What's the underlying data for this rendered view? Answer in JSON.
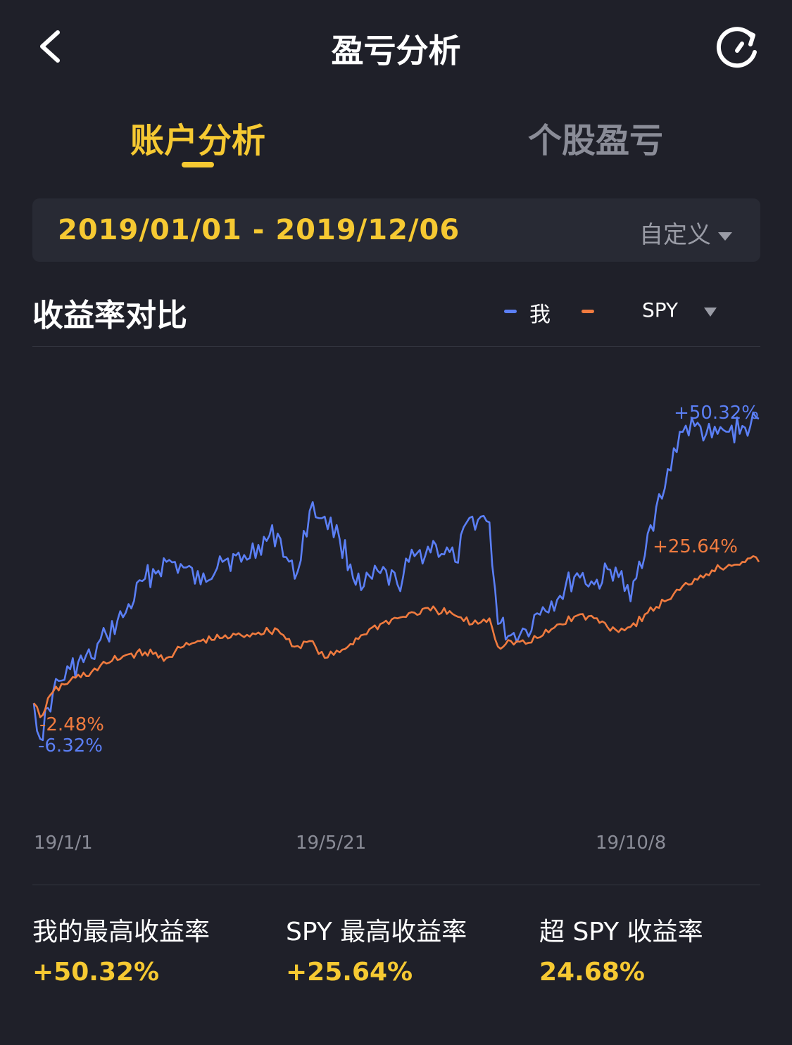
{
  "header": {
    "title": "盈亏分析",
    "back_icon": "chevron-left-icon",
    "refresh_icon": "refresh-icon"
  },
  "tabs": [
    {
      "label": "账户分析",
      "active": true
    },
    {
      "label": "个股盈亏",
      "active": false
    }
  ],
  "date_range": {
    "text": "2019/01/01 - 2019/12/06",
    "mode_label": "自定义"
  },
  "section": {
    "title": "收益率对比",
    "legend": {
      "me_label": "我",
      "benchmark_label": "SPY"
    }
  },
  "colors": {
    "me": "#5b7ff5",
    "spy": "#f07b3f",
    "accent": "#f6c932",
    "background": "#1f2029"
  },
  "chart_data": {
    "type": "line",
    "x_tick_labels": [
      "19/1/1",
      "19/5/21",
      "19/10/8"
    ],
    "x_range": [
      "2019-01-01",
      "2019-12-06"
    ],
    "y_unit": "%",
    "grid": false,
    "legend_position": "top-right",
    "series": [
      {
        "name": "我",
        "color": "#5b7ff5",
        "x": [
          "2019-01-01",
          "2019-01-04",
          "2019-01-10",
          "2019-01-18",
          "2019-01-28",
          "2019-02-04",
          "2019-02-13",
          "2019-02-22",
          "2019-03-04",
          "2019-03-12",
          "2019-03-20",
          "2019-03-29",
          "2019-04-08",
          "2019-04-16",
          "2019-04-25",
          "2019-05-03",
          "2019-05-10",
          "2019-05-17",
          "2019-05-24",
          "2019-06-03",
          "2019-06-12",
          "2019-06-20",
          "2019-06-28",
          "2019-07-08",
          "2019-07-17",
          "2019-07-25",
          "2019-08-02",
          "2019-08-06",
          "2019-08-12",
          "2019-08-19",
          "2019-08-27",
          "2019-09-04",
          "2019-09-12",
          "2019-09-20",
          "2019-09-30",
          "2019-10-07",
          "2019-10-15",
          "2019-10-23",
          "2019-10-30",
          "2019-11-06",
          "2019-11-14",
          "2019-11-22",
          "2019-12-02",
          "2019-12-06"
        ],
        "values": [
          0.0,
          -6.32,
          2.0,
          6.0,
          8.0,
          12.0,
          16.0,
          22.0,
          25.0,
          24.0,
          21.0,
          26.0,
          25.0,
          28.0,
          30.0,
          22.0,
          34.0,
          33.0,
          29.0,
          20.0,
          23.0,
          21.0,
          26.0,
          28.0,
          25.0,
          33.0,
          32.0,
          14.0,
          12.0,
          13.0,
          17.0,
          19.0,
          23.0,
          21.0,
          24.0,
          18.0,
          30.0,
          38.0,
          48.0,
          49.0,
          47.0,
          48.0,
          49.0,
          50.32
        ]
      },
      {
        "name": "SPY",
        "color": "#f07b3f",
        "x": [
          "2019-01-01",
          "2019-01-04",
          "2019-01-10",
          "2019-01-18",
          "2019-01-28",
          "2019-02-04",
          "2019-02-13",
          "2019-02-22",
          "2019-03-04",
          "2019-03-12",
          "2019-03-20",
          "2019-03-29",
          "2019-04-08",
          "2019-04-16",
          "2019-04-25",
          "2019-05-03",
          "2019-05-10",
          "2019-05-17",
          "2019-05-24",
          "2019-06-03",
          "2019-06-12",
          "2019-06-20",
          "2019-06-28",
          "2019-07-08",
          "2019-07-17",
          "2019-07-25",
          "2019-08-02",
          "2019-08-06",
          "2019-08-12",
          "2019-08-19",
          "2019-08-27",
          "2019-09-04",
          "2019-09-12",
          "2019-09-20",
          "2019-09-30",
          "2019-10-07",
          "2019-10-15",
          "2019-10-23",
          "2019-10-30",
          "2019-11-06",
          "2019-11-14",
          "2019-11-22",
          "2019-12-02",
          "2019-12-06"
        ],
        "values": [
          0.0,
          -2.48,
          2.0,
          4.0,
          5.5,
          7.0,
          8.5,
          9.0,
          8.0,
          10.0,
          11.0,
          11.5,
          12.0,
          12.5,
          13.0,
          10.0,
          11.0,
          8.0,
          9.0,
          12.0,
          14.0,
          15.0,
          16.0,
          16.5,
          15.5,
          14.0,
          15.0,
          10.0,
          11.0,
          10.5,
          12.0,
          14.0,
          15.5,
          15.0,
          13.0,
          13.5,
          16.0,
          18.0,
          20.0,
          22.0,
          23.5,
          24.5,
          25.64,
          25.0
        ]
      }
    ],
    "annotations": [
      {
        "series": "我",
        "text": "+50.32%"
      },
      {
        "series": "SPY",
        "text": "+25.64%"
      },
      {
        "series": "SPY",
        "text": "-2.48%"
      },
      {
        "series": "我",
        "text": "-6.32%"
      }
    ]
  },
  "stats": [
    {
      "label": "我的最高收益率",
      "value": "+50.32%"
    },
    {
      "label": "SPY 最高收益率",
      "value": "+25.64%"
    },
    {
      "label": "超 SPY 收益率",
      "value": "24.68%"
    }
  ]
}
